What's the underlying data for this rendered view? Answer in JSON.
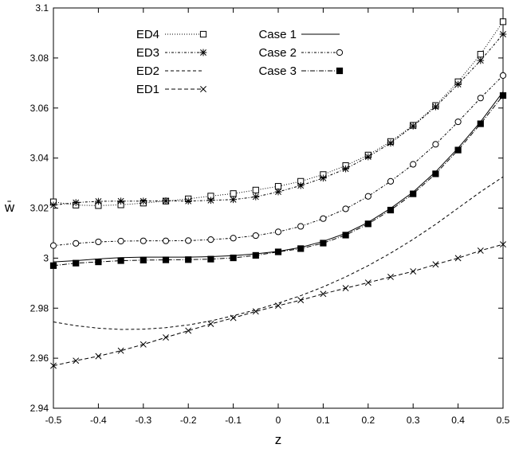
{
  "chart_data": {
    "type": "line",
    "title": "",
    "xlabel": "z",
    "ylabel": "w̄",
    "xlim": [
      -0.5,
      0.5
    ],
    "ylim": [
      2.94,
      3.1
    ],
    "xticks": [
      -0.5,
      -0.4,
      -0.3,
      -0.2,
      -0.1,
      0,
      0.1,
      0.2,
      0.3,
      0.4,
      0.5
    ],
    "xtick_labels": [
      "-0.5",
      "-0.4",
      "-0.3",
      "-0.2",
      "-0.1",
      "0",
      "0.1",
      "0.2",
      "0.3",
      "0.4",
      "0.5"
    ],
    "yticks": [
      2.94,
      2.96,
      2.98,
      3.0,
      3.02,
      3.04,
      3.06,
      3.08,
      3.1
    ],
    "ytick_labels": [
      "2.94",
      "2.96",
      "2.98",
      "3",
      "3.02",
      "3.04",
      "3.06",
      "3.08",
      "3.1"
    ],
    "grid": false,
    "legend_placement": "top-left",
    "x": [
      -0.5,
      -0.45,
      -0.4,
      -0.35,
      -0.3,
      -0.25,
      -0.2,
      -0.15,
      -0.1,
      -0.05,
      0,
      0.05,
      0.1,
      0.15,
      0.2,
      0.25,
      0.3,
      0.35,
      0.4,
      0.45,
      0.5
    ],
    "series": [
      {
        "name": "ED4",
        "marker": "square-open",
        "dash": "1 2",
        "values": [
          3.0225,
          3.0212,
          3.021,
          3.0213,
          3.022,
          3.0228,
          3.0237,
          3.0248,
          3.0258,
          3.0272,
          3.0287,
          3.0307,
          3.0334,
          3.037,
          3.0412,
          3.0466,
          3.0531,
          3.061,
          3.0705,
          3.0815,
          3.0945
        ]
      },
      {
        "name": "ED3",
        "marker": "star",
        "dash": "3 2 1 2",
        "values": [
          3.0212,
          3.0222,
          3.0227,
          3.0228,
          3.0228,
          3.0229,
          3.0228,
          3.0231,
          3.0234,
          3.0245,
          3.0265,
          3.029,
          3.032,
          3.0357,
          3.0405,
          3.046,
          3.0528,
          3.0605,
          3.0695,
          3.079,
          3.0895
        ]
      },
      {
        "name": "ED2",
        "marker": "none",
        "dash": "4 3",
        "values": [
          2.9745,
          2.973,
          2.972,
          2.9715,
          2.9716,
          2.9722,
          2.9733,
          2.9749,
          2.977,
          2.9793,
          2.982,
          2.985,
          2.9885,
          2.9925,
          2.997,
          3.002,
          3.0075,
          3.0135,
          3.02,
          3.0265,
          3.0325
        ]
      },
      {
        "name": "ED1",
        "marker": "cross",
        "dash": "5 3",
        "values": [
          2.957,
          2.959,
          2.9608,
          2.963,
          2.9655,
          2.9683,
          2.971,
          2.9737,
          2.9761,
          2.9787,
          2.981,
          2.9832,
          2.9857,
          2.988,
          2.9902,
          2.9925,
          2.9947,
          2.9975,
          3.0,
          3.003,
          3.0055
        ]
      },
      {
        "name": "Case 1",
        "marker": "none",
        "dash": "",
        "values": [
          2.9985,
          2.999,
          2.9997,
          3.0002,
          3.0004,
          3.0004,
          3.0004,
          3.0006,
          3.001,
          3.0017,
          3.0027,
          3.0043,
          3.0067,
          3.0099,
          3.0143,
          3.0199,
          3.0264,
          3.0345,
          3.044,
          3.0545,
          3.0665
        ]
      },
      {
        "name": "Case 2",
        "marker": "circle-open",
        "dash": "3 2 1 2",
        "values": [
          3.005,
          3.0059,
          3.0065,
          3.0068,
          3.0069,
          3.0069,
          3.007,
          3.0074,
          3.008,
          3.009,
          3.0105,
          3.0127,
          3.0158,
          3.0197,
          3.0247,
          3.0307,
          3.0375,
          3.0455,
          3.0545,
          3.064,
          3.073
        ]
      },
      {
        "name": "Case 3",
        "marker": "square-filled",
        "dash": "6 2 1 2",
        "values": [
          2.997,
          2.998,
          2.9985,
          2.999,
          2.9992,
          2.9993,
          2.9994,
          2.9996,
          3.0001,
          3.0011,
          3.0025,
          3.0038,
          3.006,
          3.0092,
          3.0137,
          3.0192,
          3.0257,
          3.0337,
          3.0432,
          3.0537,
          3.065
        ]
      }
    ]
  }
}
